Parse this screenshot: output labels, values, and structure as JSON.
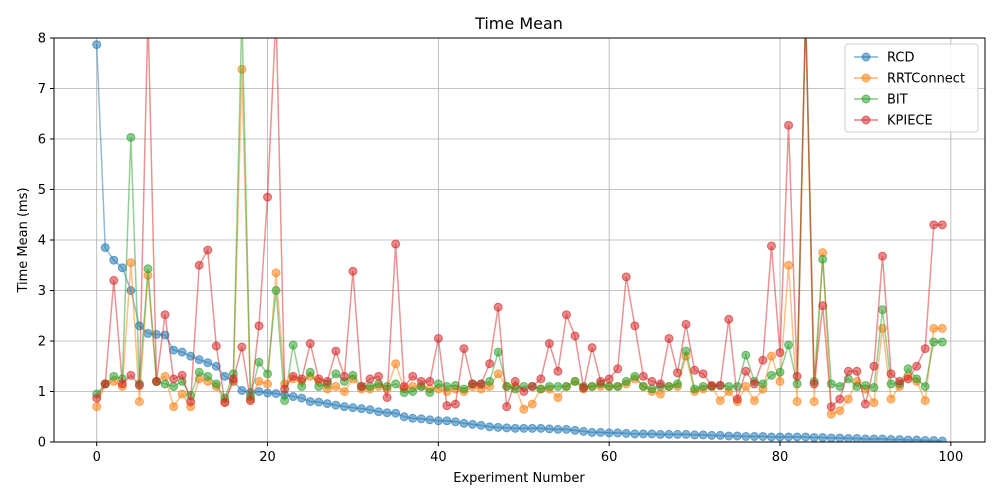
{
  "chart_data": {
    "type": "line",
    "title": "Time Mean",
    "xlabel": "Experiment Number",
    "ylabel": "Time Mean (ms)",
    "xlim": [
      -5,
      104
    ],
    "ylim": [
      0,
      8
    ],
    "xticks": [
      0,
      20,
      40,
      60,
      80,
      100
    ],
    "yticks": [
      0,
      1,
      2,
      3,
      4,
      5,
      6,
      7,
      8
    ],
    "grid": true,
    "legend_position": "top-right",
    "series": [
      {
        "name": "RCD",
        "color": "#1f77b4",
        "values": [
          7.87,
          3.85,
          3.6,
          3.45,
          3.0,
          2.3,
          2.15,
          2.13,
          2.12,
          1.82,
          1.78,
          1.7,
          1.63,
          1.57,
          1.5,
          1.3,
          1.2,
          1.02,
          0.98,
          1.0,
          0.97,
          0.96,
          0.93,
          0.9,
          0.87,
          0.8,
          0.79,
          0.76,
          0.73,
          0.7,
          0.68,
          0.66,
          0.64,
          0.6,
          0.58,
          0.57,
          0.5,
          0.47,
          0.46,
          0.44,
          0.42,
          0.42,
          0.4,
          0.37,
          0.35,
          0.33,
          0.3,
          0.29,
          0.28,
          0.27,
          0.27,
          0.27,
          0.27,
          0.26,
          0.25,
          0.25,
          0.23,
          0.21,
          0.19,
          0.19,
          0.18,
          0.18,
          0.17,
          0.16,
          0.16,
          0.16,
          0.15,
          0.15,
          0.15,
          0.15,
          0.14,
          0.14,
          0.13,
          0.13,
          0.12,
          0.12,
          0.11,
          0.11,
          0.11,
          0.1,
          0.1,
          0.1,
          0.1,
          0.1,
          0.09,
          0.09,
          0.08,
          0.08,
          0.07,
          0.07,
          0.06,
          0.06,
          0.06,
          0.05,
          0.05,
          0.04,
          0.04,
          0.03,
          0.03,
          0.02
        ]
      },
      {
        "name": "RRTConnect",
        "color": "#ff7f0e",
        "values": [
          0.7,
          1.15,
          1.2,
          1.1,
          3.55,
          0.8,
          3.3,
          1.2,
          1.3,
          0.7,
          0.95,
          0.7,
          1.25,
          1.2,
          1.1,
          0.8,
          1.2,
          7.38,
          0.85,
          1.2,
          1.15,
          3.35,
          1.15,
          1.25,
          1.2,
          1.3,
          1.2,
          1.05,
          1.1,
          1.0,
          1.25,
          1.05,
          1.05,
          1.1,
          1.05,
          1.55,
          1.05,
          1.1,
          1.1,
          1.05,
          1.05,
          1.0,
          1.05,
          1.0,
          1.1,
          1.05,
          1.1,
          1.35,
          1.1,
          1.1,
          0.65,
          0.75,
          1.05,
          1.05,
          0.88,
          1.1,
          1.2,
          1.05,
          1.1,
          1.1,
          1.1,
          1.1,
          1.15,
          1.25,
          1.1,
          1.0,
          0.95,
          1.1,
          1.1,
          1.7,
          1.0,
          1.05,
          1.1,
          0.82,
          1.0,
          0.8,
          1.1,
          0.82,
          1.05,
          1.7,
          1.2,
          3.5,
          0.8,
          8.5,
          0.8,
          3.75,
          0.55,
          0.62,
          0.85,
          1.2,
          1.05,
          0.78,
          2.25,
          0.85,
          1.1,
          1.3,
          1.2,
          0.82,
          2.25,
          2.25
        ]
      },
      {
        "name": "BIT",
        "color": "#2ca02c",
        "values": [
          0.95,
          1.15,
          1.3,
          1.25,
          6.03,
          1.15,
          3.43,
          1.2,
          1.15,
          1.1,
          1.2,
          0.92,
          1.38,
          1.3,
          1.15,
          0.87,
          1.35,
          8.5,
          0.9,
          1.58,
          1.35,
          3.0,
          0.82,
          1.92,
          1.1,
          1.38,
          1.1,
          1.15,
          1.35,
          1.2,
          1.32,
          1.1,
          1.1,
          1.15,
          1.1,
          1.15,
          0.98,
          1.0,
          1.1,
          0.98,
          1.15,
          1.1,
          1.12,
          1.05,
          1.15,
          1.15,
          1.2,
          1.78,
          1.1,
          1.05,
          1.1,
          1.1,
          1.05,
          1.1,
          1.1,
          1.1,
          1.2,
          1.1,
          1.1,
          1.15,
          1.1,
          1.1,
          1.2,
          1.3,
          1.1,
          1.05,
          1.1,
          1.1,
          1.15,
          1.8,
          1.05,
          1.1,
          1.1,
          1.12,
          1.1,
          1.1,
          1.72,
          1.2,
          1.15,
          1.32,
          1.38,
          1.92,
          1.15,
          8.5,
          1.2,
          3.62,
          1.15,
          1.1,
          1.25,
          1.1,
          1.12,
          1.08,
          2.62,
          1.15,
          1.15,
          1.45,
          1.25,
          1.1,
          1.98,
          1.98
        ]
      },
      {
        "name": "KPIECE",
        "color": "#d62728",
        "values": [
          0.87,
          1.15,
          3.2,
          1.15,
          1.32,
          1.12,
          8.5,
          1.2,
          2.52,
          1.25,
          1.32,
          0.8,
          3.5,
          3.8,
          1.9,
          0.78,
          1.25,
          1.88,
          0.82,
          2.3,
          4.85,
          8.5,
          1.05,
          1.3,
          1.25,
          1.95,
          1.25,
          1.2,
          1.8,
          1.3,
          3.38,
          1.1,
          1.25,
          1.3,
          0.88,
          3.92,
          1.1,
          1.3,
          1.2,
          1.2,
          2.05,
          0.72,
          0.75,
          1.85,
          1.15,
          1.15,
          1.55,
          2.67,
          0.7,
          1.2,
          1.0,
          1.1,
          1.25,
          1.95,
          1.4,
          2.52,
          2.1,
          1.07,
          1.87,
          1.2,
          1.25,
          1.45,
          3.27,
          2.3,
          1.3,
          1.2,
          1.15,
          2.05,
          1.37,
          2.33,
          1.42,
          1.35,
          1.12,
          1.12,
          2.43,
          0.85,
          1.4,
          1.15,
          1.62,
          3.88,
          1.77,
          6.27,
          1.3,
          8.5,
          1.15,
          2.7,
          0.7,
          0.85,
          1.4,
          1.4,
          0.75,
          1.5,
          3.68,
          1.35,
          1.2,
          1.25,
          1.5,
          1.85,
          4.3,
          4.3
        ]
      }
    ]
  }
}
